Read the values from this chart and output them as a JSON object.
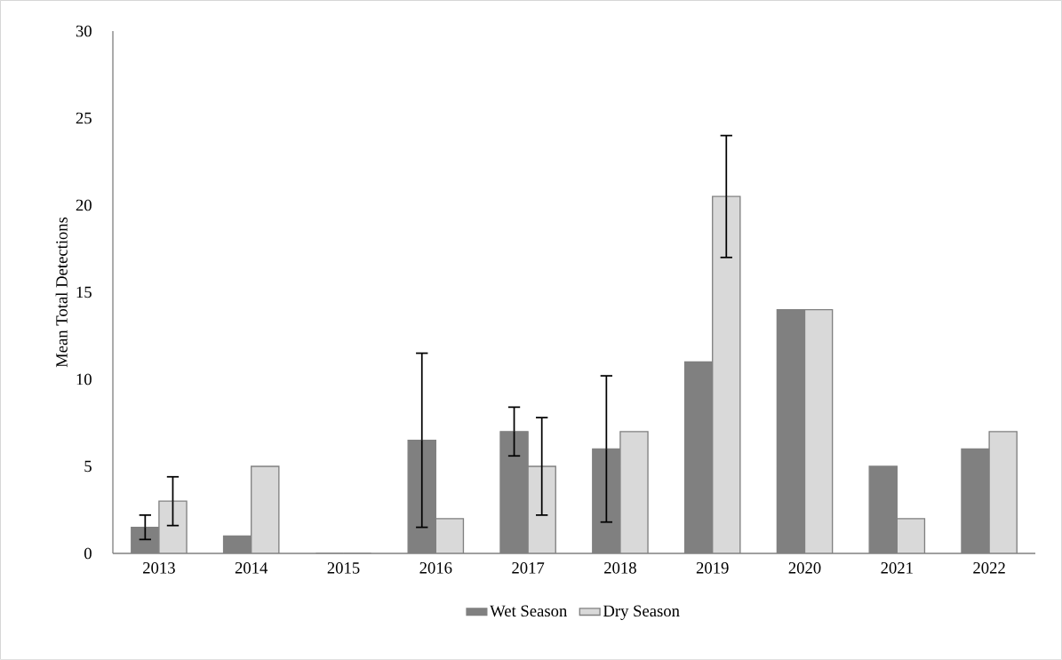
{
  "chart_data": {
    "type": "bar",
    "ylabel": "Mean Total Detections",
    "categories": [
      "2013",
      "2014",
      "2015",
      "2016",
      "2017",
      "2018",
      "2019",
      "2020",
      "2021",
      "2022"
    ],
    "series": [
      {
        "name": "Wet Season",
        "color": "#808080",
        "values": [
          1.5,
          1,
          0,
          6.5,
          7,
          6,
          11,
          14,
          5,
          6
        ],
        "errors": [
          0.7,
          null,
          null,
          5,
          1.4,
          4.2,
          null,
          null,
          null,
          null
        ]
      },
      {
        "name": "Dry Season",
        "color": "#d9d9d9",
        "values": [
          3,
          5,
          0,
          2,
          5,
          7,
          20.5,
          14,
          2,
          7
        ],
        "errors": [
          1.4,
          null,
          null,
          null,
          2.8,
          null,
          3.5,
          null,
          null,
          null
        ]
      }
    ],
    "ylim": [
      0,
      30
    ],
    "yticks": [
      0,
      5,
      10,
      15,
      20,
      25,
      30
    ],
    "grid": false,
    "legend": "bottom"
  }
}
